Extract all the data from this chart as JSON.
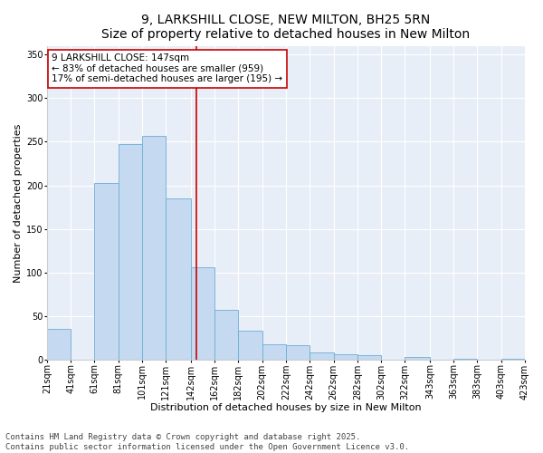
{
  "title": "9, LARKSHILL CLOSE, NEW MILTON, BH25 5RN",
  "subtitle": "Size of property relative to detached houses in New Milton",
  "xlabel": "Distribution of detached houses by size in New Milton",
  "ylabel": "Number of detached properties",
  "bin_edges": [
    21,
    41,
    61,
    81,
    101,
    121,
    142,
    162,
    182,
    202,
    222,
    242,
    262,
    282,
    302,
    322,
    343,
    363,
    383,
    403,
    423
  ],
  "bar_heights": [
    35,
    0,
    203,
    247,
    257,
    185,
    106,
    57,
    33,
    18,
    17,
    8,
    6,
    5,
    0,
    3,
    0,
    1,
    0,
    1
  ],
  "bar_color": "#c5d9f0",
  "bar_edge_color": "#6baed6",
  "property_line_x": 147,
  "property_line_color": "#cc0000",
  "annotation_text": "9 LARKSHILL CLOSE: 147sqm\n← 83% of detached houses are smaller (959)\n17% of semi-detached houses are larger (195) →",
  "annotation_box_color": "#ffffff",
  "annotation_box_edge_color": "#cc0000",
  "ylim": [
    0,
    360
  ],
  "yticks": [
    0,
    50,
    100,
    150,
    200,
    250,
    300,
    350
  ],
  "bg_color": "#ffffff",
  "plot_bg_color": "#e8eef7",
  "footer_text": "Contains HM Land Registry data © Crown copyright and database right 2025.\nContains public sector information licensed under the Open Government Licence v3.0.",
  "title_fontsize": 10,
  "xlabel_fontsize": 8,
  "ylabel_fontsize": 8,
  "tick_fontsize": 7,
  "footer_fontsize": 6.5,
  "annotation_fontsize": 7.5
}
